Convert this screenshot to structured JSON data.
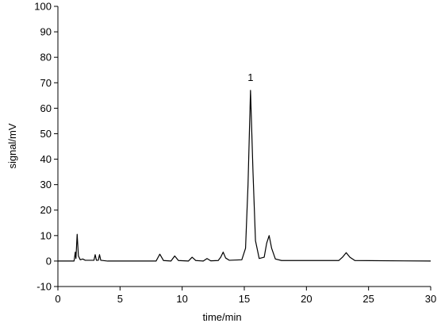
{
  "chart_data": {
    "type": "line",
    "xlabel": "time/min",
    "ylabel": "signal/mV",
    "color": "#000000",
    "x": [
      0,
      1.3,
      1.4,
      1.45,
      1.55,
      1.65,
      1.8,
      2.0,
      2.2,
      2.5,
      2.9,
      3.0,
      3.1,
      3.25,
      3.35,
      3.45,
      4.0,
      7.9,
      8.2,
      8.5,
      9.1,
      9.4,
      9.7,
      10.5,
      10.8,
      11.1,
      11.7,
      12.0,
      12.3,
      12.9,
      13.1,
      13.3,
      13.5,
      13.8,
      14.8,
      15.1,
      15.3,
      15.5,
      15.7,
      15.9,
      16.2,
      16.6,
      16.8,
      17.0,
      17.2,
      17.5,
      18,
      22.6,
      22.9,
      23.2,
      23.5,
      23.9,
      30
    ],
    "values": [
      0,
      0,
      3.5,
      1,
      10.5,
      2,
      0.5,
      0.8,
      0.3,
      0.3,
      0.3,
      2.5,
      0.3,
      0.3,
      2.5,
      0.3,
      0,
      0,
      2.7,
      0.2,
      0,
      2,
      0.2,
      0,
      1.5,
      0.2,
      0,
      1,
      0.1,
      0.2,
      1.5,
      3.5,
      1.2,
      0.3,
      0.5,
      5,
      30,
      67,
      35,
      8,
      1,
      1.5,
      7,
      10,
      5,
      0.8,
      0.2,
      0.2,
      1.5,
      3.3,
      1.5,
      0.2,
      0
    ],
    "xlim": [
      0,
      30
    ],
    "xticks": [
      0,
      5,
      10,
      15,
      20,
      25,
      30
    ],
    "ylim": [
      -10,
      100
    ],
    "yticks": [
      -10,
      0,
      10,
      20,
      30,
      40,
      50,
      60,
      70,
      80,
      90,
      100
    ],
    "annotations": [
      {
        "text": "1",
        "x": 15.5,
        "y": 67
      }
    ]
  }
}
